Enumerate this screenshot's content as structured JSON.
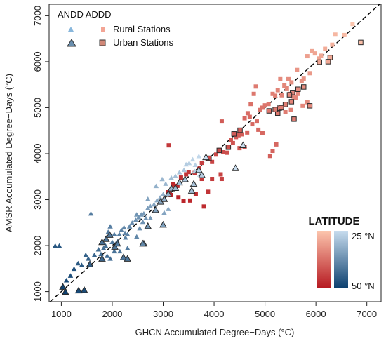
{
  "chart_data": {
    "type": "scatter",
    "xlabel": "GHCN Accumulated Degree−Days (°C)",
    "ylabel": "AMSR Accumulated Degree−Days (°C)",
    "xlim": [
      760,
      7280
    ],
    "ylim": [
      780,
      7250
    ],
    "xticks": [
      1000,
      2000,
      3000,
      4000,
      5000,
      6000,
      7000
    ],
    "yticks": [
      1000,
      2000,
      3000,
      4000,
      5000,
      6000,
      7000
    ],
    "grid": false,
    "reference_line": "1:1 dashed",
    "legend": {
      "position": "top-left",
      "header": "ANDD ADDD",
      "entries": [
        "Rural Stations",
        "Urban Stations"
      ]
    },
    "colorbar": {
      "title": "LATITUDE",
      "top_label": "25 °N",
      "bottom_label": "50 °N",
      "range": [
        25,
        50
      ],
      "andd_colors": [
        "#fcc5ad",
        "#b61820"
      ],
      "addd_colors": [
        "#c7dcee",
        "#0b3f6e"
      ]
    },
    "series": [
      {
        "name": "Rural Stations",
        "group": "ANDD",
        "marker": "square",
        "outline": false,
        "points": [
          [
            6720,
            6820
          ],
          [
            6560,
            6580
          ],
          [
            6380,
            6590
          ],
          [
            6320,
            6370
          ],
          [
            6180,
            6280
          ],
          [
            6100,
            6130
          ],
          [
            5920,
            6230
          ],
          [
            5980,
            6180
          ],
          [
            6060,
            6070
          ],
          [
            5830,
            6120
          ],
          [
            5880,
            5750
          ],
          [
            5760,
            5630
          ],
          [
            5630,
            5820
          ],
          [
            5720,
            5580
          ],
          [
            5520,
            5550
          ],
          [
            5460,
            5620
          ],
          [
            5380,
            5480
          ],
          [
            5430,
            5420
          ],
          [
            5300,
            5620
          ],
          [
            5250,
            5380
          ],
          [
            5150,
            5300
          ],
          [
            5560,
            5240
          ],
          [
            5490,
            5300
          ],
          [
            5330,
            5270
          ],
          [
            5200,
            5260
          ],
          [
            5650,
            5300
          ],
          [
            5600,
            5220
          ],
          [
            5830,
            5120
          ],
          [
            5740,
            5040
          ],
          [
            5510,
            4950
          ],
          [
            5400,
            4900
          ],
          [
            5070,
            5080
          ],
          [
            5000,
            5050
          ],
          [
            4950,
            5000
          ],
          [
            4900,
            4950
          ],
          [
            4820,
            5460
          ],
          [
            4780,
            5300
          ],
          [
            4720,
            5080
          ],
          [
            4840,
            4700
          ],
          [
            4700,
            4800
          ],
          [
            4660,
            4880
          ],
          [
            4600,
            4770
          ],
          [
            4750,
            4640
          ],
          [
            4870,
            4520
          ],
          [
            4950,
            4450
          ],
          [
            4650,
            4460
          ],
          [
            4550,
            4420
          ],
          [
            4480,
            4400
          ],
          [
            4430,
            4360
          ],
          [
            4370,
            4230
          ],
          [
            4330,
            4290
          ],
          [
            4500,
            4120
          ],
          [
            4600,
            4150
          ],
          [
            4430,
            4420
          ],
          [
            4150,
            4700
          ],
          [
            5220,
            4200
          ],
          [
            5150,
            4060
          ],
          [
            5100,
            3950
          ],
          [
            4180,
            4030
          ],
          [
            4120,
            4080
          ],
          [
            4250,
            4020
          ],
          [
            4040,
            3980
          ],
          [
            3960,
            3820
          ],
          [
            3870,
            3880
          ],
          [
            3760,
            3800
          ],
          [
            3700,
            3680
          ],
          [
            3620,
            3580
          ],
          [
            3500,
            3600
          ],
          [
            3450,
            3550
          ],
          [
            3350,
            3480
          ],
          [
            3200,
            3330
          ],
          [
            3280,
            3300
          ],
          [
            3150,
            3100
          ],
          [
            3300,
            3050
          ],
          [
            3400,
            2970
          ],
          [
            3530,
            2980
          ],
          [
            3640,
            3130
          ],
          [
            3760,
            3450
          ],
          [
            3880,
            3170
          ],
          [
            3960,
            3450
          ],
          [
            4150,
            3450
          ],
          [
            4130,
            3550
          ],
          [
            3800,
            2850
          ],
          [
            3110,
            4180
          ],
          [
            3100,
            3160
          ]
        ]
      },
      {
        "name": "Urban Stations",
        "group": "ANDD",
        "marker": "square",
        "outline": true,
        "points": [
          [
            6880,
            6420
          ],
          [
            6280,
            6090
          ],
          [
            6240,
            6000
          ],
          [
            6070,
            5990
          ],
          [
            5760,
            5450
          ],
          [
            5650,
            5400
          ],
          [
            5540,
            5330
          ],
          [
            5480,
            5280
          ],
          [
            5520,
            5130
          ],
          [
            5400,
            5070
          ],
          [
            5280,
            4990
          ],
          [
            5250,
            4880
          ],
          [
            5080,
            4930
          ],
          [
            5880,
            5040
          ],
          [
            5570,
            4750
          ],
          [
            4510,
            4510
          ],
          [
            4390,
            4430
          ],
          [
            4100,
            4070
          ],
          [
            4280,
            4140
          ],
          [
            3900,
            3900
          ],
          [
            5320,
            5000
          ],
          [
            5200,
            4960
          ]
        ]
      },
      {
        "name": "Rural Stations",
        "group": "ADDD",
        "marker": "triangle",
        "outline": false,
        "points": [
          [
            880,
            2000
          ],
          [
            960,
            2000
          ],
          [
            1580,
            2700
          ],
          [
            1100,
            1250
          ],
          [
            1180,
            1350
          ],
          [
            1250,
            1500
          ],
          [
            1330,
            1620
          ],
          [
            1400,
            1580
          ],
          [
            1480,
            1800
          ],
          [
            1530,
            1720
          ],
          [
            1650,
            1800
          ],
          [
            1730,
            1920
          ],
          [
            1780,
            1820
          ],
          [
            1830,
            1950
          ],
          [
            1870,
            2000
          ],
          [
            1900,
            1780
          ],
          [
            1960,
            1720
          ],
          [
            2000,
            2080
          ],
          [
            2040,
            1880
          ],
          [
            2100,
            2100
          ],
          [
            2140,
            2250
          ],
          [
            2180,
            2340
          ],
          [
            2230,
            2400
          ],
          [
            2260,
            2180
          ],
          [
            2300,
            2250
          ],
          [
            2340,
            2420
          ],
          [
            2390,
            2500
          ],
          [
            2460,
            2560
          ],
          [
            2520,
            2620
          ],
          [
            2570,
            2680
          ],
          [
            2620,
            2700
          ],
          [
            2660,
            2600
          ],
          [
            2480,
            2200
          ],
          [
            2540,
            2380
          ],
          [
            2700,
            2820
          ],
          [
            2750,
            2860
          ],
          [
            2820,
            2900
          ],
          [
            2880,
            2990
          ],
          [
            2940,
            3050
          ],
          [
            3000,
            3120
          ],
          [
            2860,
            3300
          ],
          [
            3050,
            3350
          ],
          [
            2980,
            3450
          ],
          [
            3160,
            3480
          ],
          [
            3240,
            3520
          ],
          [
            3320,
            3600
          ],
          [
            3410,
            3650
          ],
          [
            3450,
            3770
          ],
          [
            3510,
            3800
          ],
          [
            3580,
            3880
          ],
          [
            3630,
            3760
          ],
          [
            3700,
            3950
          ],
          [
            3720,
            3550
          ],
          [
            3620,
            3620
          ],
          [
            2600,
            2520
          ],
          [
            2480,
            2680
          ],
          [
            2040,
            2250
          ],
          [
            1960,
            2420
          ],
          [
            1920,
            2300
          ],
          [
            2250,
            2280
          ],
          [
            2700,
            3020
          ],
          [
            2750,
            2600
          ],
          [
            3020,
            2720
          ],
          [
            3100,
            2800
          ],
          [
            2300,
            1950
          ],
          [
            2150,
            1880
          ]
        ]
      },
      {
        "name": "Urban Stations",
        "group": "ADDD",
        "marker": "triangle",
        "outline": true,
        "points": [
          [
            1030,
            1110
          ],
          [
            1080,
            1000
          ],
          [
            1340,
            1030
          ],
          [
            1450,
            1040
          ],
          [
            1560,
            1600
          ],
          [
            1800,
            1720
          ],
          [
            1880,
            2150
          ],
          [
            2050,
            1980
          ],
          [
            2100,
            2050
          ],
          [
            2220,
            1750
          ],
          [
            2300,
            1720
          ],
          [
            2620,
            2050
          ],
          [
            2700,
            2430
          ],
          [
            2850,
            2780
          ],
          [
            2950,
            2960
          ],
          [
            3020,
            3020
          ],
          [
            3100,
            3130
          ],
          [
            3160,
            3250
          ],
          [
            3240,
            3260
          ],
          [
            3320,
            3380
          ],
          [
            3430,
            3450
          ],
          [
            3560,
            3200
          ],
          [
            3600,
            3350
          ],
          [
            3700,
            3650
          ],
          [
            3760,
            3540
          ],
          [
            3840,
            3930
          ],
          [
            3000,
            2460
          ],
          [
            4420,
            3690
          ],
          [
            4570,
            4190
          ],
          [
            1800,
            2080
          ],
          [
            2600,
            2050
          ],
          [
            1950,
            2240
          ]
        ]
      }
    ]
  }
}
